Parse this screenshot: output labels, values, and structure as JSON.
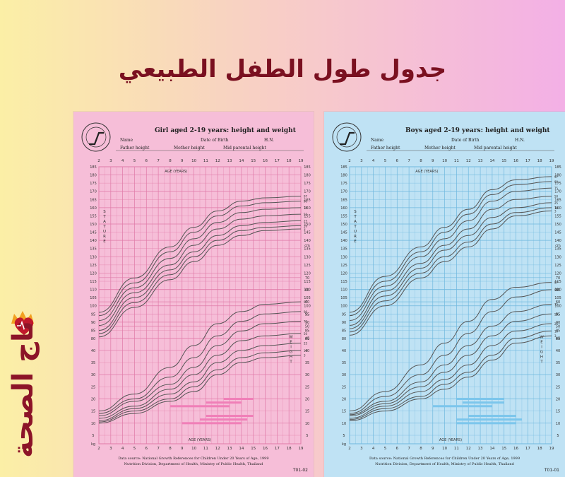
{
  "page_title": "جدول طول الطفل الطبيعي",
  "logo_text": "تاج الصحة",
  "colors": {
    "girls_paper": "#f6bed8",
    "girls_grid": "#e07aa8",
    "girls_bar": "#f07fb8",
    "boys_paper": "#bfe2f4",
    "boys_grid": "#6fb8de",
    "boys_bar": "#7cc6ec",
    "curve": "#555555",
    "title": "#7a1020"
  },
  "chart_data": [
    {
      "type": "line",
      "title": "Girl aged 2-19 years: height and weight",
      "form_fields": [
        "Name",
        "Date of Birth",
        "H.N.",
        "Father height",
        "Mother height",
        "Mid parental height"
      ],
      "age_label": "AGE (YEARS)",
      "stature_label": "STATURE",
      "weight_label": "WEIGHT",
      "x_ticks": [
        2,
        3,
        4,
        5,
        6,
        7,
        8,
        9,
        10,
        11,
        12,
        13,
        14,
        15,
        16,
        17,
        18,
        19
      ],
      "xlim": [
        2,
        19
      ],
      "stature_ticks": [
        185,
        180,
        175,
        170,
        165,
        160,
        155,
        150,
        145,
        140
      ],
      "weight_ticks": [
        70,
        65,
        60,
        55,
        50,
        45,
        40,
        35,
        30,
        25,
        20,
        15,
        10,
        5
      ],
      "shared_ticks": [
        135,
        130,
        125,
        120,
        115,
        110,
        105,
        100,
        95,
        90,
        85,
        80
      ],
      "cm_unit": "cm",
      "kg_unit": "kg",
      "right_side_labels": [
        "97",
        "90",
        "75",
        "50",
        "25",
        "10",
        "3"
      ],
      "stature_series": [
        {
          "name": "97",
          "x": [
            2,
            5,
            8,
            10,
            12,
            14,
            16,
            19
          ],
          "y": [
            96,
            117,
            136,
            148,
            158,
            164,
            166,
            167
          ]
        },
        {
          "name": "90",
          "x": [
            2,
            5,
            8,
            10,
            12,
            14,
            16,
            19
          ],
          "y": [
            94,
            114,
            133,
            145,
            155,
            161,
            163,
            164
          ]
        },
        {
          "name": "75",
          "x": [
            2,
            5,
            8,
            10,
            12,
            14,
            16,
            19
          ],
          "y": [
            91,
            111,
            129,
            141,
            151,
            157,
            159,
            160
          ]
        },
        {
          "name": "50",
          "x": [
            2,
            5,
            8,
            10,
            12,
            14,
            16,
            19
          ],
          "y": [
            88,
            108,
            125,
            137,
            147,
            153,
            155,
            156
          ]
        },
        {
          "name": "25",
          "x": [
            2,
            5,
            8,
            10,
            12,
            14,
            16,
            19
          ],
          "y": [
            85,
            105,
            122,
            133,
            143,
            149,
            151,
            152
          ]
        },
        {
          "name": "10",
          "x": [
            2,
            5,
            8,
            10,
            12,
            14,
            16,
            19
          ],
          "y": [
            83,
            102,
            119,
            130,
            140,
            146,
            148,
            149
          ]
        },
        {
          "name": "3",
          "x": [
            2,
            5,
            8,
            10,
            12,
            14,
            16,
            19
          ],
          "y": [
            81,
            99,
            116,
            127,
            137,
            143,
            146,
            147
          ]
        }
      ],
      "weight_series": [
        {
          "name": "97",
          "x": [
            2,
            5,
            8,
            10,
            12,
            14,
            16,
            19
          ],
          "y": [
            15,
            22,
            33,
            42,
            51,
            56,
            59,
            60
          ]
        },
        {
          "name": "90",
          "x": [
            2,
            5,
            8,
            10,
            12,
            14,
            16,
            19
          ],
          "y": [
            14,
            20,
            29,
            37,
            46,
            52,
            55,
            56
          ]
        },
        {
          "name": "75",
          "x": [
            2,
            5,
            8,
            10,
            12,
            14,
            16,
            19
          ],
          "y": [
            13,
            19,
            26,
            33,
            42,
            48,
            51,
            52
          ]
        },
        {
          "name": "50",
          "x": [
            2,
            5,
            8,
            10,
            12,
            14,
            16,
            19
          ],
          "y": [
            12,
            17,
            24,
            30,
            38,
            44,
            46,
            47
          ]
        },
        {
          "name": "25",
          "x": [
            2,
            5,
            8,
            10,
            12,
            14,
            16,
            19
          ],
          "y": [
            11,
            16,
            22,
            27,
            35,
            40,
            42,
            43
          ]
        },
        {
          "name": "10",
          "x": [
            2,
            5,
            8,
            10,
            12,
            14,
            16,
            19
          ],
          "y": [
            10.5,
            15,
            20,
            25,
            32,
            37,
            39,
            40
          ]
        },
        {
          "name": "3",
          "x": [
            2,
            5,
            8,
            10,
            12,
            14,
            16,
            19
          ],
          "y": [
            10,
            14,
            19,
            23,
            30,
            35,
            37,
            38
          ]
        }
      ],
      "puberty_bars": [
        {
          "from": 12.5,
          "to": 15,
          "w": 20,
          "color": "pink"
        },
        {
          "from": 11,
          "to": 14,
          "w": 18.5,
          "color": "pink"
        },
        {
          "from": 8,
          "to": 13,
          "w": 17,
          "color": "pink"
        },
        {
          "from": 11,
          "to": 15,
          "w": 13,
          "color": "pink"
        },
        {
          "from": 10.5,
          "to": 14.5,
          "w": 11.5,
          "color": "pink"
        },
        {
          "from": 9,
          "to": 14,
          "w": 10,
          "color": "pink"
        }
      ],
      "source_line1": "Data source: National Growth References for Children Under 20 Years of Age, 1999",
      "source_line2": "Nutrition Division, Department of Health, Ministry of Public Health, Thailand",
      "form_code": "T01-02"
    },
    {
      "type": "line",
      "title": "Boys aged 2-19 years: height and weight",
      "form_fields": [
        "Name",
        "Date of Birth",
        "H.N.",
        "Father height",
        "Mother height",
        "Mid parental height"
      ],
      "age_label": "AGE (YEARS)",
      "stature_label": "STATURE",
      "weight_label": "WEIGHT",
      "x_ticks": [
        2,
        3,
        4,
        5,
        6,
        7,
        8,
        9,
        10,
        11,
        12,
        13,
        14,
        15,
        16,
        17,
        18,
        19
      ],
      "xlim": [
        2,
        19
      ],
      "stature_ticks": [
        185,
        180,
        175,
        170,
        165,
        160,
        155,
        150,
        145,
        140
      ],
      "weight_ticks": [
        70,
        65,
        60,
        55,
        50,
        45,
        40,
        35,
        30,
        25,
        20,
        15,
        10,
        5
      ],
      "shared_ticks": [
        135,
        130,
        125,
        120,
        115,
        110,
        105,
        100,
        95,
        90,
        85,
        80
      ],
      "cm_unit": "cm",
      "kg_unit": "kg",
      "right_side_labels": [
        "97",
        "90",
        "75",
        "50",
        "25",
        "10",
        "3"
      ],
      "stature_series": [
        {
          "name": "97",
          "x": [
            2,
            5,
            8,
            10,
            12,
            14,
            16,
            19
          ],
          "y": [
            96,
            118,
            136,
            148,
            159,
            171,
            177,
            179
          ]
        },
        {
          "name": "90",
          "x": [
            2,
            5,
            8,
            10,
            12,
            14,
            16,
            19
          ],
          "y": [
            94,
            115,
            133,
            145,
            156,
            168,
            174,
            176
          ]
        },
        {
          "name": "75",
          "x": [
            2,
            5,
            8,
            10,
            12,
            14,
            16,
            19
          ],
          "y": [
            91,
            112,
            130,
            141,
            152,
            164,
            170,
            172
          ]
        },
        {
          "name": "50",
          "x": [
            2,
            5,
            8,
            10,
            12,
            14,
            16,
            19
          ],
          "y": [
            88,
            109,
            126,
            137,
            147,
            159,
            165,
            167
          ]
        },
        {
          "name": "25",
          "x": [
            2,
            5,
            8,
            10,
            12,
            14,
            16,
            19
          ],
          "y": [
            86,
            106,
            123,
            134,
            143,
            154,
            160,
            163
          ]
        },
        {
          "name": "10",
          "x": [
            2,
            5,
            8,
            10,
            12,
            14,
            16,
            19
          ],
          "y": [
            84,
            103,
            120,
            130,
            139,
            150,
            157,
            160
          ]
        },
        {
          "name": "3",
          "x": [
            2,
            5,
            8,
            10,
            12,
            14,
            16,
            19
          ],
          "y": [
            82,
            100,
            117,
            127,
            136,
            147,
            155,
            158
          ]
        }
      ],
      "weight_series": [
        {
          "name": "97",
          "x": [
            2,
            5,
            8,
            10,
            12,
            14,
            16,
            19
          ],
          "y": [
            15,
            23,
            34,
            43,
            52,
            61,
            66,
            68
          ]
        },
        {
          "name": "90",
          "x": [
            2,
            5,
            8,
            10,
            12,
            14,
            16,
            19
          ],
          "y": [
            14,
            21,
            30,
            38,
            47,
            56,
            62,
            65
          ]
        },
        {
          "name": "75",
          "x": [
            2,
            5,
            8,
            10,
            12,
            14,
            16,
            19
          ],
          "y": [
            13.5,
            19,
            27,
            34,
            42,
            50,
            56,
            59
          ]
        },
        {
          "name": "50",
          "x": [
            2,
            5,
            8,
            10,
            12,
            14,
            16,
            19
          ],
          "y": [
            13,
            18,
            25,
            31,
            38,
            46,
            52,
            55
          ]
        },
        {
          "name": "25",
          "x": [
            2,
            5,
            8,
            10,
            12,
            14,
            16,
            19
          ],
          "y": [
            12,
            17,
            23,
            28,
            34,
            42,
            48,
            51
          ]
        },
        {
          "name": "10",
          "x": [
            2,
            5,
            8,
            10,
            12,
            14,
            16,
            19
          ],
          "y": [
            11.5,
            16,
            21,
            26,
            31,
            38,
            45,
            48
          ]
        },
        {
          "name": "3",
          "x": [
            2,
            5,
            8,
            10,
            12,
            14,
            16,
            19
          ],
          "y": [
            11,
            15,
            20,
            24,
            29,
            36,
            43,
            46
          ]
        }
      ],
      "puberty_bars": [
        {
          "from": 11,
          "to": 15,
          "w": 20,
          "color": "blue"
        },
        {
          "from": 11.5,
          "to": 15,
          "w": 18.5,
          "color": "blue"
        },
        {
          "from": 9,
          "to": 14,
          "w": 17,
          "color": "blue"
        },
        {
          "from": 12,
          "to": 16,
          "w": 13,
          "color": "blue"
        },
        {
          "from": 11,
          "to": 16.5,
          "w": 11.5,
          "color": "blue"
        },
        {
          "from": 11,
          "to": 16,
          "w": 10,
          "color": "blue"
        }
      ],
      "source_line1": "Data source: National Growth References for Children Under 20 Years of Age, 1999",
      "source_line2": "Nutrition Division, Department of Health, Ministry of Public Health, Thailand",
      "form_code": "T01-01"
    }
  ]
}
